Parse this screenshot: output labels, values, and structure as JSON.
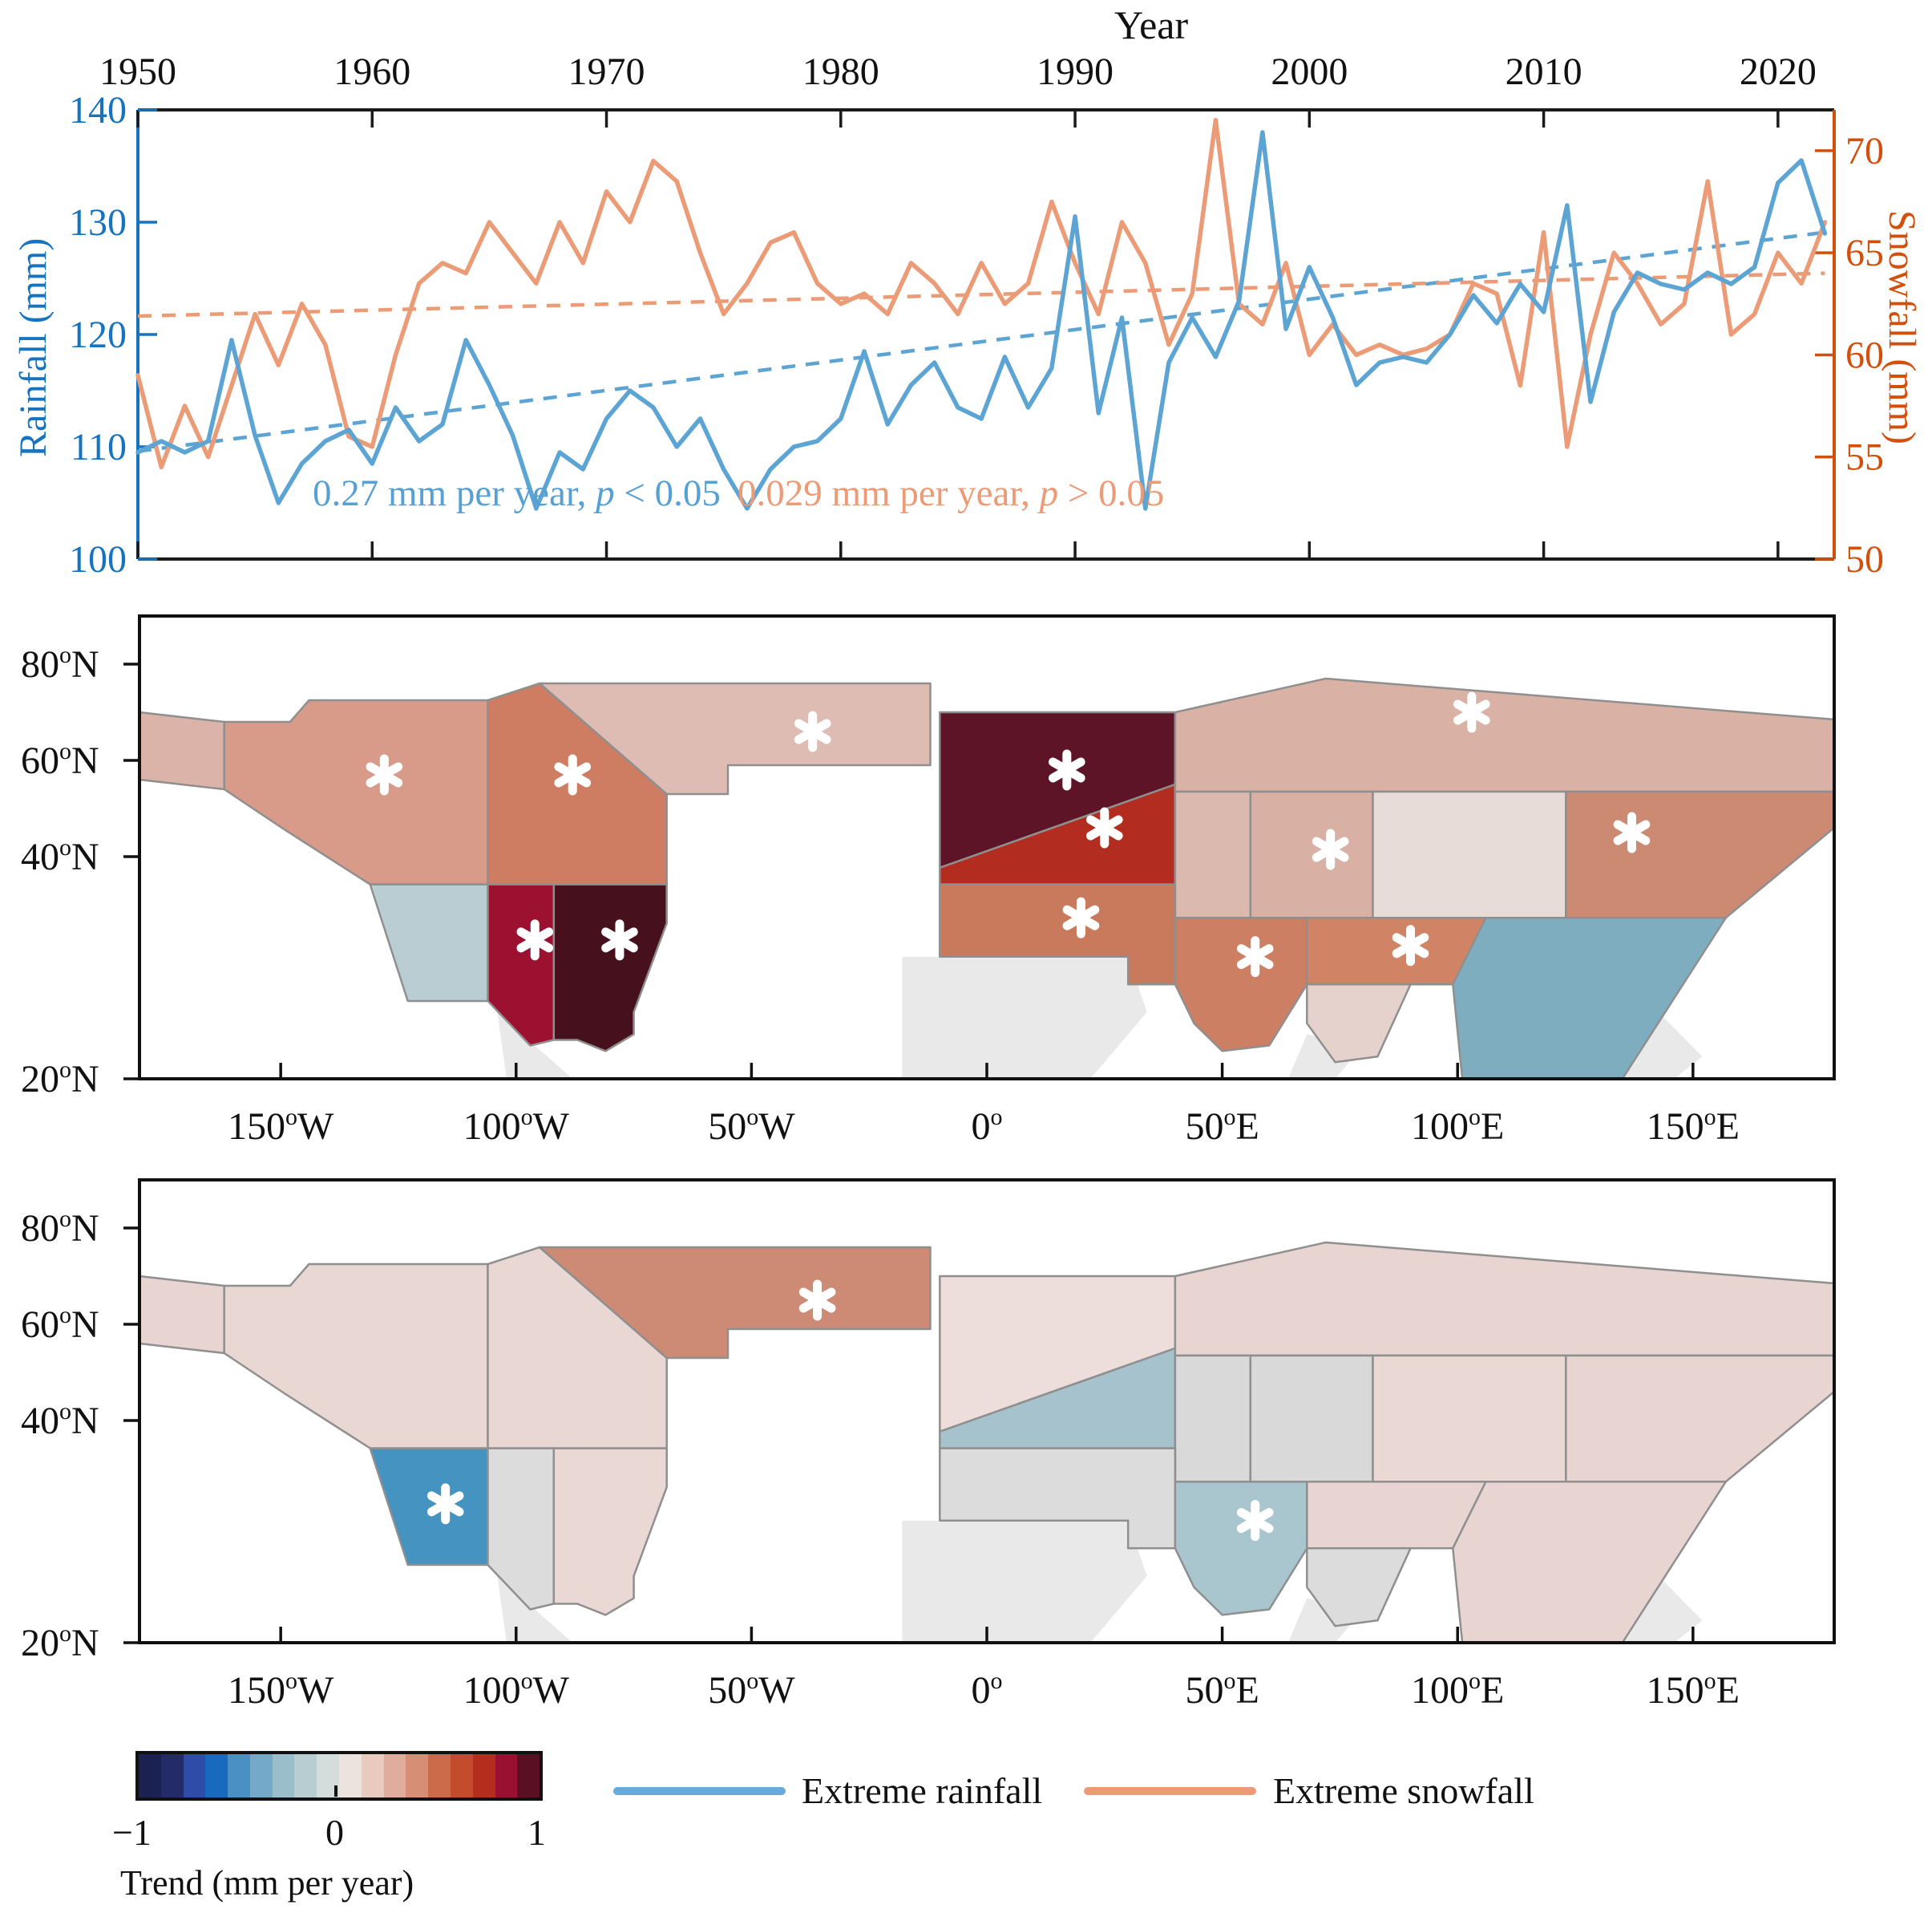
{
  "chart_data": [
    {
      "type": "line",
      "xlabel": "Year",
      "ylabel_left": "Rainfall (mm)",
      "ylabel_right": "Snowfall (mm)",
      "x_ticks": [
        1950,
        1960,
        1970,
        1980,
        1990,
        2000,
        2010,
        2020
      ],
      "y_ticks_left": [
        140,
        130,
        120,
        110,
        100
      ],
      "y_ticks_right": [
        70,
        65,
        60,
        55,
        50
      ],
      "ylim_left": [
        100,
        140
      ],
      "ylim_right": [
        50,
        72
      ],
      "xlim": [
        1950,
        2022.4
      ],
      "colors": {
        "rainfall": "#5ba4d4",
        "snowfall": "#ec9b77",
        "axis_left": "#1673bf",
        "axis_right": "#d2500c",
        "axis_black": "#1a1a1a"
      },
      "years_start": 1950,
      "rainfall": [
        109.5,
        110.5,
        109.5,
        110.5,
        119.5,
        111,
        105,
        108.5,
        110.5,
        111.5,
        108.5,
        113.5,
        110.5,
        112,
        119.5,
        115.5,
        111,
        104.5,
        109.5,
        108,
        112.5,
        115,
        113.5,
        110,
        112.5,
        108,
        104.5,
        108,
        110,
        110.5,
        112.5,
        118.5,
        112,
        115.5,
        117.5,
        113.5,
        112.5,
        118,
        113.5,
        117,
        130.5,
        113,
        121.5,
        104.5,
        117.5,
        121.5,
        118,
        123,
        138,
        120.5,
        126,
        121.5,
        115.5,
        117.5,
        118,
        117.5,
        120,
        123.5,
        121,
        124.5,
        122,
        131.5,
        114,
        122,
        125.5,
        124.5,
        124,
        125.5,
        124.5,
        126,
        133.5,
        135.5,
        129
      ],
      "snowfall": [
        59,
        54.5,
        57.5,
        55,
        58.5,
        62,
        59.5,
        62.5,
        60.5,
        56,
        55.5,
        60,
        63.5,
        64.5,
        64,
        66.5,
        65,
        63.5,
        66.5,
        64.5,
        68,
        66.5,
        69.5,
        68.5,
        65,
        62,
        63.5,
        65.5,
        66,
        63.5,
        62.5,
        63,
        62,
        64.5,
        63.5,
        62,
        64.5,
        62.5,
        63.5,
        67.5,
        64.5,
        62,
        66.5,
        64.5,
        60.5,
        63,
        71.5,
        62.5,
        61.5,
        64.5,
        60,
        61.5,
        60,
        60.5,
        60,
        60.3,
        61,
        63.5,
        63,
        58.5,
        66,
        55.5,
        61,
        65,
        63.5,
        61.5,
        62.5,
        68.5,
        61,
        62,
        65,
        63.5,
        66.5
      ],
      "trend_rainfall": {
        "start": 109.6,
        "end": 129.1,
        "text": "0.27 mm per year, ",
        "p": "p",
        "cond": " < 0.05"
      },
      "trend_snowfall": {
        "start": 61.9,
        "end": 64.0,
        "text": "0.029 mm per year, ",
        "p": "p",
        "cond": " > 0.05"
      }
    },
    {
      "type": "choropleth-map",
      "name": "extreme-rainfall-trend-map",
      "x_ticks": [
        {
          "lon": -150,
          "label": "150",
          "suffix": "W"
        },
        {
          "lon": -100,
          "label": "100",
          "suffix": "W"
        },
        {
          "lon": -50,
          "label": "50",
          "suffix": "W"
        },
        {
          "lon": 0,
          "label": "0",
          "suffix": ""
        },
        {
          "lon": 50,
          "label": "50",
          "suffix": "E"
        },
        {
          "lon": 100,
          "label": "100",
          "suffix": "E"
        },
        {
          "lon": 150,
          "label": "150",
          "suffix": "E"
        }
      ],
      "y_ticks": [
        {
          "lat": 80,
          "label": "80",
          "suffix": "N"
        },
        {
          "lat": 60,
          "label": "60",
          "suffix": "N"
        },
        {
          "lat": 40,
          "label": "40",
          "suffix": "N"
        },
        {
          "lat": 20,
          "label": "20",
          "suffix": "N"
        }
      ],
      "region_polygons": {
        "sliver-west": [
          [
            -180,
            70
          ],
          [
            -162,
            68
          ],
          [
            -162,
            54
          ],
          [
            -180,
            56
          ]
        ],
        "alaska-wcanada": [
          [
            -162,
            68
          ],
          [
            -148,
            68
          ],
          [
            -144,
            72.5
          ],
          [
            -106,
            72.5
          ],
          [
            -106,
            37.5
          ],
          [
            -131,
            37.5
          ],
          [
            -149,
            45.5
          ],
          [
            -162,
            54
          ]
        ],
        "canada-central": [
          [
            -106,
            72.5
          ],
          [
            -95,
            76
          ],
          [
            -68,
            53
          ],
          [
            -68,
            37.5
          ],
          [
            -106,
            37.5
          ]
        ],
        "canada-east-greenland": [
          [
            -95,
            76
          ],
          [
            -12,
            76
          ],
          [
            -12,
            59
          ],
          [
            -55,
            59
          ],
          [
            -55,
            53
          ],
          [
            -68,
            53
          ]
        ],
        "us-southwest": [
          [
            -131,
            37.5
          ],
          [
            -106,
            37.5
          ],
          [
            -106,
            27
          ],
          [
            -123,
            27
          ]
        ],
        "us-central": [
          [
            -106,
            37.5
          ],
          [
            -92,
            37.5
          ],
          [
            -92,
            23.5
          ],
          [
            -97,
            23
          ],
          [
            -106,
            27
          ]
        ],
        "us-east": [
          [
            -92,
            37.5
          ],
          [
            -68,
            37.5
          ],
          [
            -68,
            34
          ],
          [
            -75,
            26
          ],
          [
            -75,
            24
          ],
          [
            -81,
            22.5
          ],
          [
            -87,
            23.5
          ],
          [
            -92,
            23.5
          ]
        ],
        "europe-north": [
          [
            -10,
            70
          ],
          [
            40,
            70
          ],
          [
            40,
            55
          ],
          [
            -10,
            39
          ]
        ],
        "europe-south": [
          [
            -10,
            39
          ],
          [
            40,
            55
          ],
          [
            40,
            37.5
          ],
          [
            -10,
            37.5
          ]
        ],
        "siberia-top": [
          [
            40,
            70
          ],
          [
            72,
            77
          ],
          [
            180,
            68.5
          ],
          [
            180,
            53.5
          ],
          [
            40,
            53.5
          ]
        ],
        "asia-west": [
          [
            40,
            53.5
          ],
          [
            56,
            53.5
          ],
          [
            56,
            34.5
          ],
          [
            40,
            34.5
          ]
        ],
        "asia-central": [
          [
            56,
            53.5
          ],
          [
            82,
            53.5
          ],
          [
            82,
            34.5
          ],
          [
            56,
            34.5
          ]
        ],
        "asia-eastcentral": [
          [
            82,
            53.5
          ],
          [
            123,
            53.5
          ],
          [
            123,
            34.5
          ],
          [
            82,
            34.5
          ]
        ],
        "far-east": [
          [
            123,
            53.5
          ],
          [
            180,
            53.5
          ],
          [
            180,
            46
          ],
          [
            157,
            34.5
          ],
          [
            123,
            34.5
          ]
        ],
        "band-europe": [
          [
            -10,
            37.5
          ],
          [
            40,
            37.5
          ],
          [
            40,
            28.5
          ],
          [
            30,
            28.5
          ],
          [
            30,
            31
          ],
          [
            -10,
            31
          ]
        ],
        "band-mideast": [
          [
            40,
            34.5
          ],
          [
            68,
            34.5
          ],
          [
            68,
            28.5
          ],
          [
            60,
            23
          ],
          [
            50,
            22.5
          ],
          [
            44,
            25
          ],
          [
            40,
            28.5
          ]
        ],
        "asia-south": [
          [
            68,
            34.5
          ],
          [
            106,
            34.5
          ],
          [
            99,
            28.5
          ],
          [
            68,
            28.5
          ]
        ],
        "tongue-south": [
          [
            68,
            28.5
          ],
          [
            90,
            28.5
          ],
          [
            83,
            22
          ],
          [
            74,
            21.5
          ],
          [
            68,
            25
          ]
        ],
        "east-asia": [
          [
            106,
            34.5
          ],
          [
            157,
            34.5
          ],
          [
            135,
            20
          ],
          [
            101,
            20
          ],
          [
            99,
            28.5
          ]
        ]
      },
      "silhouettes": [
        [
          [
            -104,
            26
          ],
          [
            -88,
            20
          ],
          [
            -102,
            20
          ]
        ],
        [
          [
            -18,
            31
          ],
          [
            30,
            31
          ],
          [
            34,
            26
          ],
          [
            22,
            20
          ],
          [
            -18,
            20
          ]
        ],
        [
          [
            68,
            24
          ],
          [
            80,
            23
          ],
          [
            74,
            20
          ],
          [
            64,
            20
          ]
        ],
        [
          [
            138,
            28
          ],
          [
            152,
            22
          ],
          [
            146,
            20
          ],
          [
            126,
            20
          ]
        ]
      ],
      "fills": {
        "sliver-west": "#dcb3a8",
        "alaska-wcanada": "#d89b8a",
        "canada-central": "#ce7d62",
        "canada-east-greenland": "#debcb3",
        "us-southwest": "#b9cdd3",
        "us-central": "#9c1030",
        "us-east": "#47101d",
        "europe-north": "#5c1426",
        "europe-south": "#b22d20",
        "siberia-top": "#d9b1a5",
        "asia-west": "#dcb9ae",
        "asia-central": "#d8b0a4",
        "asia-eastcentral": "#e8dcd8",
        "far-east": "#cd8a72",
        "band-europe": "#ca7a5c",
        "band-mideast": "#cc7f62",
        "asia-south": "#d08465",
        "tongue-south": "#e6d2cd",
        "east-asia": "#7fadc0"
      },
      "asterisks": [
        [
          -128,
          57
        ],
        [
          -88,
          57
        ],
        [
          -37,
          66
        ],
        [
          -96,
          32.5
        ],
        [
          -78,
          32.5
        ],
        [
          17,
          58
        ],
        [
          25,
          46
        ],
        [
          103,
          70
        ],
        [
          73,
          41.5
        ],
        [
          137,
          45
        ],
        [
          20,
          34.5
        ],
        [
          57,
          31
        ],
        [
          90,
          32
        ]
      ]
    },
    {
      "type": "choropleth-map",
      "name": "extreme-snowfall-trend-map",
      "fills": {
        "sliver-west": "#e8d5d1",
        "alaska-wcanada": "#e9d7d3",
        "canada-central": "#e9d7d3",
        "canada-east-greenland": "#cd8a74",
        "us-southwest": "#4593c0",
        "us-central": "#dcdcdc",
        "us-east": "#ead8d4",
        "europe-north": "#eddedb",
        "europe-south": "#a6c3cd",
        "siberia-top": "#e8d4d0",
        "asia-west": "#d9d9d9",
        "asia-central": "#d9d9d9",
        "asia-eastcentral": "#ead8d4",
        "far-east": "#e8d5d1",
        "band-europe": "#dcdcdc",
        "band-mideast": "#a9c6cf",
        "asia-south": "#e8d5d1",
        "tongue-south": "#dcdcdc",
        "east-asia": "#e8d5d1"
      },
      "asterisks": [
        [
          -36,
          65
        ],
        [
          -115,
          32.5
        ],
        [
          57,
          31
        ]
      ]
    },
    {
      "type": "colorbar-legend",
      "colorbar_colors": [
        "#1b2150",
        "#232c68",
        "#2f4da8",
        "#186abe",
        "#4b90c4",
        "#74a9c8",
        "#9abfca",
        "#b8cdd1",
        "#d5dddc",
        "#ece3df",
        "#e9cabf",
        "#e0ac9b",
        "#d68e75",
        "#cc6b4a",
        "#c24c2b",
        "#b42d1d",
        "#9a1030",
        "#5a0f22"
      ],
      "colorbar_ticks": [
        "−1",
        "0",
        "1"
      ],
      "colorbar_label": "Trend (mm per year)",
      "items": [
        {
          "label": "Extreme rainfall",
          "color": "#6aa9d8"
        },
        {
          "label": "Extreme snowfall",
          "color": "#eb9b77"
        }
      ]
    }
  ]
}
